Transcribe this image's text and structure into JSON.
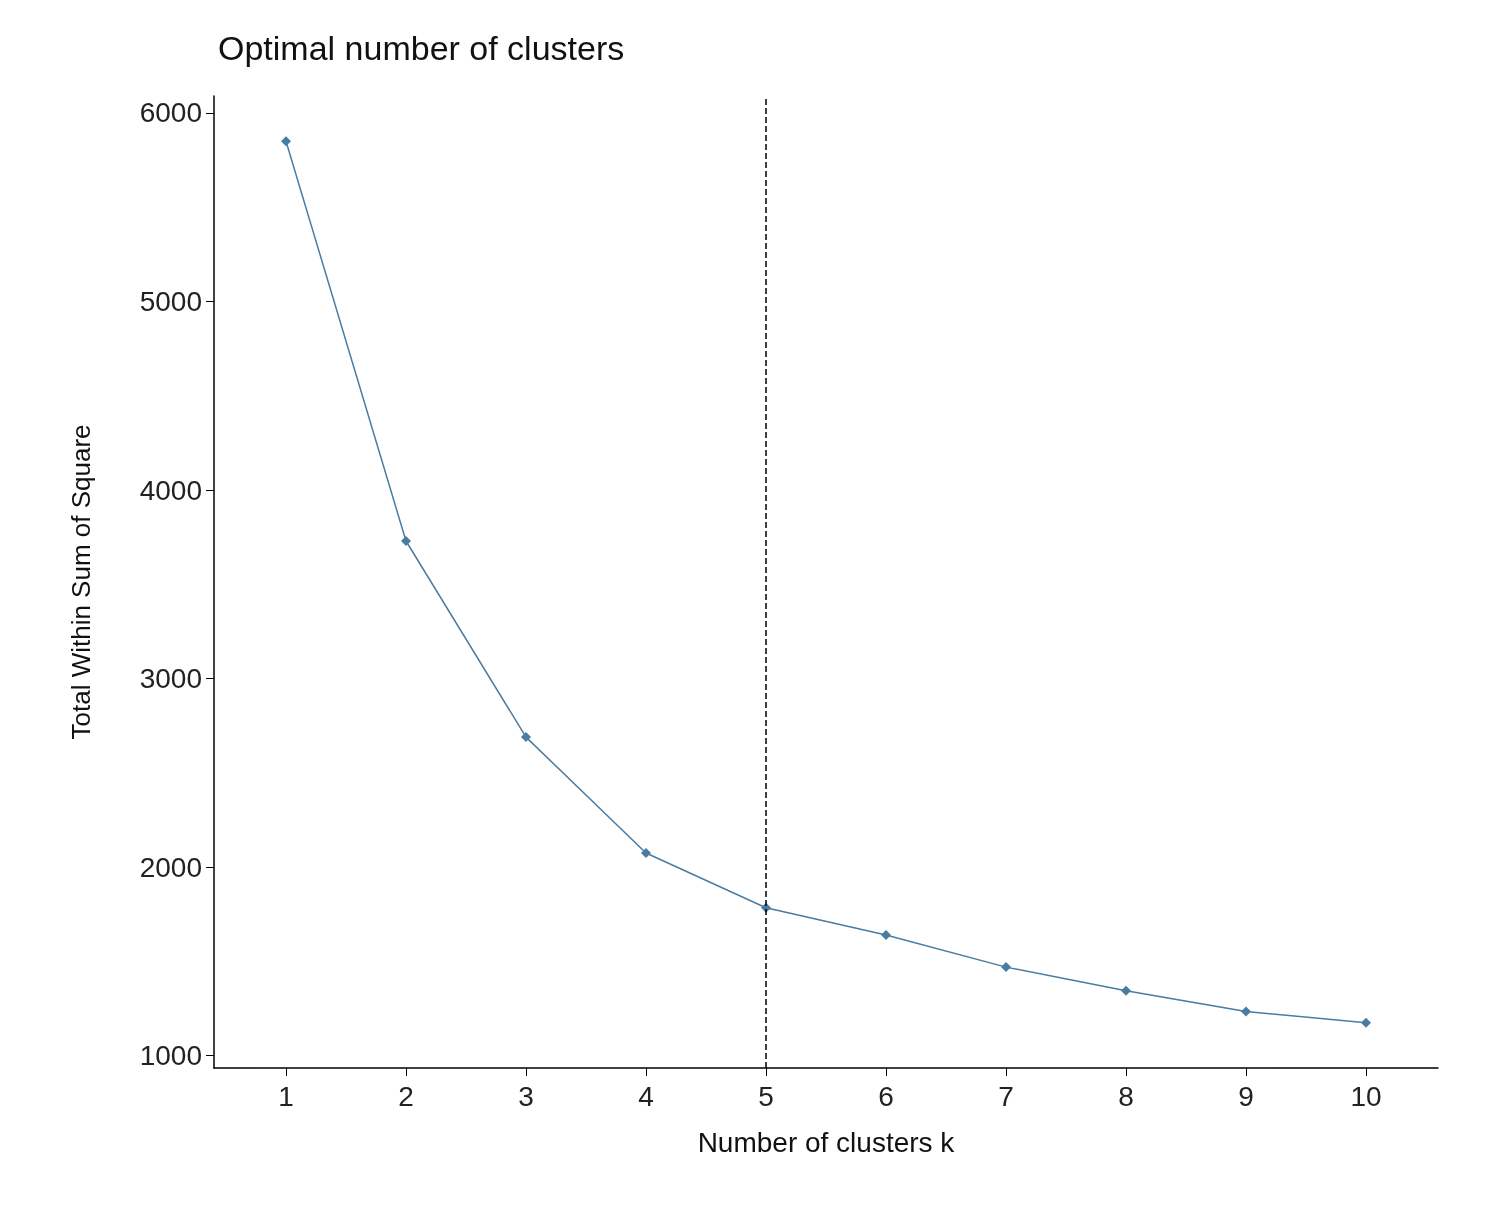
{
  "chart_data": {
    "type": "line",
    "title": "Optimal number of clusters",
    "xlabel": "Number of clusters k",
    "ylabel": "Total Within Sum of Square",
    "x": [
      1,
      2,
      3,
      4,
      5,
      6,
      7,
      8,
      9,
      10
    ],
    "series": [
      {
        "color": "#4a7ba0",
        "values": [
          5850,
          3730,
          2690,
          2075,
          1785,
          1640,
          1470,
          1345,
          1235,
          1175
        ]
      }
    ],
    "xlim": [
      0.4,
      10.6
    ],
    "xticks": [
      1,
      2,
      3,
      4,
      5,
      6,
      7,
      8,
      9,
      10
    ],
    "ylim": [
      935,
      6090
    ],
    "yticks": [
      1000,
      2000,
      3000,
      4000,
      5000,
      6000
    ],
    "ref_lines": [
      {
        "axis": "x",
        "value": 5,
        "color": "#000000",
        "line_style": "dashed"
      }
    ],
    "marker": "diamond",
    "line_style": "solid",
    "grid": false
  }
}
